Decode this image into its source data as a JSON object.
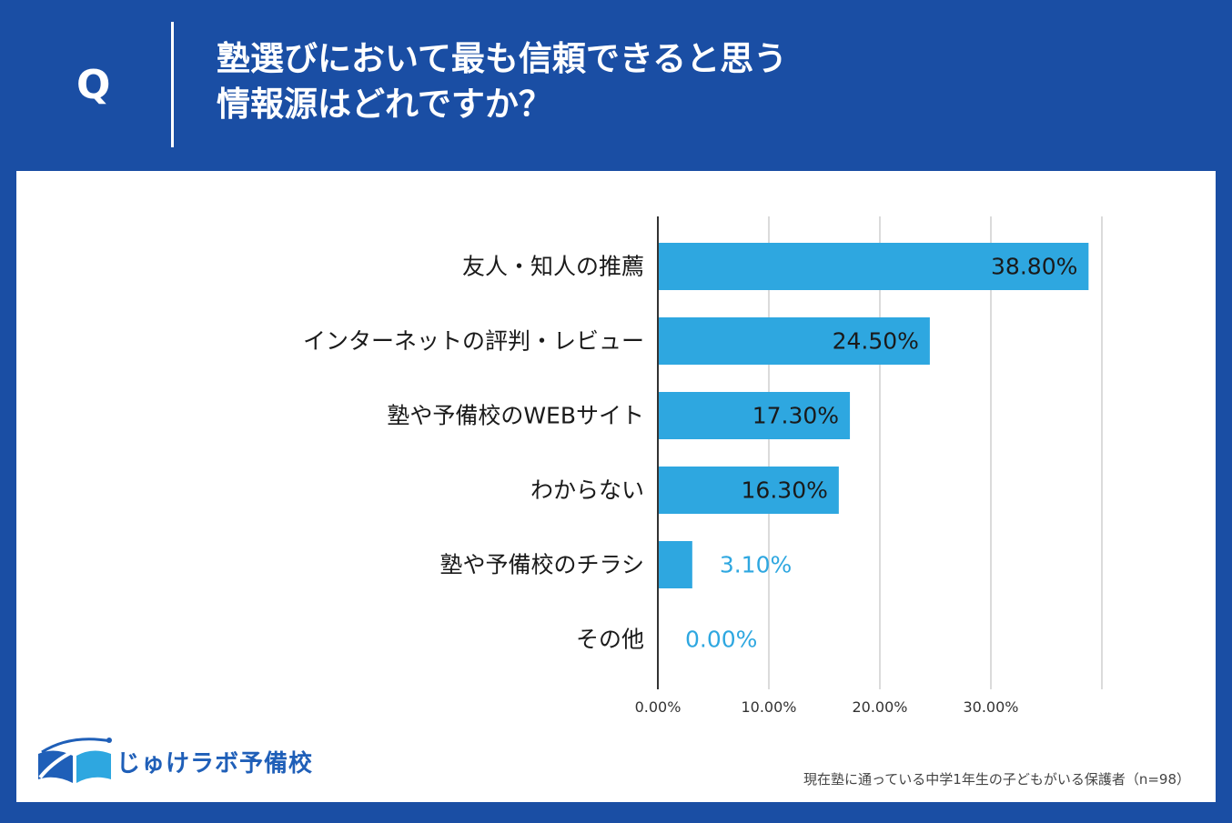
{
  "header": {
    "q_letter": "Q",
    "title_line1": "塾選びにおいて最も信頼できると思う",
    "title_line2": "情報源はどれですか？"
  },
  "colors": {
    "background": "#1a4ea4",
    "bar": "#2ea7e0",
    "label_outside": "#2ea7e0",
    "label_inside": "#1a1a1a",
    "grid": "#cfcfcf",
    "axis": "#333333"
  },
  "chart_data": {
    "type": "bar",
    "orientation": "horizontal",
    "categories": [
      "友人・知人の推薦",
      "インターネットの評判・レビュー",
      "塾や予備校のWEBサイト",
      "わからない",
      "塾や予備校のチラシ",
      "その他"
    ],
    "values": [
      38.8,
      24.5,
      17.3,
      16.3,
      3.1,
      0.0
    ],
    "value_labels": [
      "38.80%",
      "24.50%",
      "17.30%",
      "16.30%",
      "3.10%",
      "0.00%"
    ],
    "xlim": [
      0,
      40
    ],
    "x_ticks": [
      0,
      10,
      20,
      30,
      40
    ],
    "x_tick_labels": [
      "0.00%",
      "10.00%",
      "20.00%",
      "30.00%",
      ""
    ],
    "grid": true
  },
  "logo": {
    "text": "じゅけラボ予備校",
    "icon": "open-book-icon"
  },
  "footnote": "現在塾に通っている中学1年生の子どもがいる保護者（n=98）"
}
